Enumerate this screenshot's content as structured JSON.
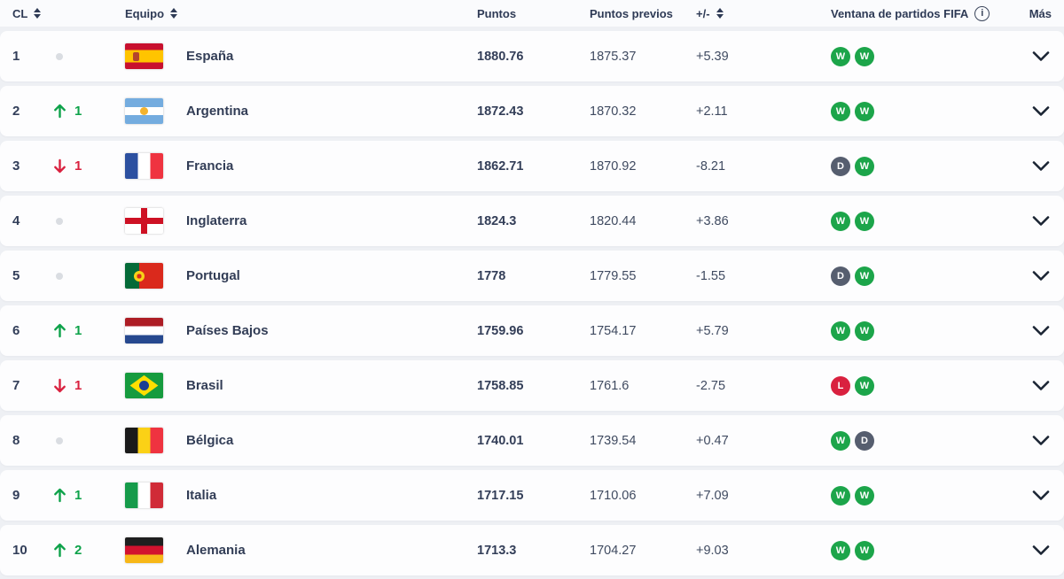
{
  "header": {
    "columns": {
      "cl": "CL",
      "equipo": "Equipo",
      "puntos": "Puntos",
      "puntos_previos": "Puntos previos",
      "delta": "+/-",
      "ventana": "Ventana de partidos FIFA",
      "mas": "Más"
    },
    "info_icon_glyph": "i"
  },
  "colors": {
    "win_badge": "#1ca54a",
    "draw_badge": "#565e6f",
    "loss_badge": "#d9213f",
    "rank_up": "#0ea24a",
    "rank_down": "#d9213f"
  },
  "rows": [
    {
      "rank": "1",
      "move_dir": "none",
      "move_value": "",
      "flag": "espana",
      "team": "España",
      "points": "1880.76",
      "prev": "1875.37",
      "delta": "+5.39",
      "window": [
        "W",
        "W"
      ]
    },
    {
      "rank": "2",
      "move_dir": "up",
      "move_value": "1",
      "flag": "argentina",
      "team": "Argentina",
      "points": "1872.43",
      "prev": "1870.32",
      "delta": "+2.11",
      "window": [
        "W",
        "W"
      ]
    },
    {
      "rank": "3",
      "move_dir": "down",
      "move_value": "1",
      "flag": "francia",
      "team": "Francia",
      "points": "1862.71",
      "prev": "1870.92",
      "delta": "-8.21",
      "window": [
        "D",
        "W"
      ]
    },
    {
      "rank": "4",
      "move_dir": "none",
      "move_value": "",
      "flag": "inglaterra",
      "team": "Inglaterra",
      "points": "1824.3",
      "prev": "1820.44",
      "delta": "+3.86",
      "window": [
        "W",
        "W"
      ]
    },
    {
      "rank": "5",
      "move_dir": "none",
      "move_value": "",
      "flag": "portugal",
      "team": "Portugal",
      "points": "1778",
      "prev": "1779.55",
      "delta": "-1.55",
      "window": [
        "D",
        "W"
      ]
    },
    {
      "rank": "6",
      "move_dir": "up",
      "move_value": "1",
      "flag": "paises-bajos",
      "team": "Países Bajos",
      "points": "1759.96",
      "prev": "1754.17",
      "delta": "+5.79",
      "window": [
        "W",
        "W"
      ]
    },
    {
      "rank": "7",
      "move_dir": "down",
      "move_value": "1",
      "flag": "brasil",
      "team": "Brasil",
      "points": "1758.85",
      "prev": "1761.6",
      "delta": "-2.75",
      "window": [
        "L",
        "W"
      ]
    },
    {
      "rank": "8",
      "move_dir": "none",
      "move_value": "",
      "flag": "belgica",
      "team": "Bélgica",
      "points": "1740.01",
      "prev": "1739.54",
      "delta": "+0.47",
      "window": [
        "W",
        "D"
      ]
    },
    {
      "rank": "9",
      "move_dir": "up",
      "move_value": "1",
      "flag": "italia",
      "team": "Italia",
      "points": "1717.15",
      "prev": "1710.06",
      "delta": "+7.09",
      "window": [
        "W",
        "W"
      ]
    },
    {
      "rank": "10",
      "move_dir": "up",
      "move_value": "2",
      "flag": "alemania",
      "team": "Alemania",
      "points": "1713.3",
      "prev": "1704.27",
      "delta": "+9.03",
      "window": [
        "W",
        "W"
      ]
    }
  ]
}
